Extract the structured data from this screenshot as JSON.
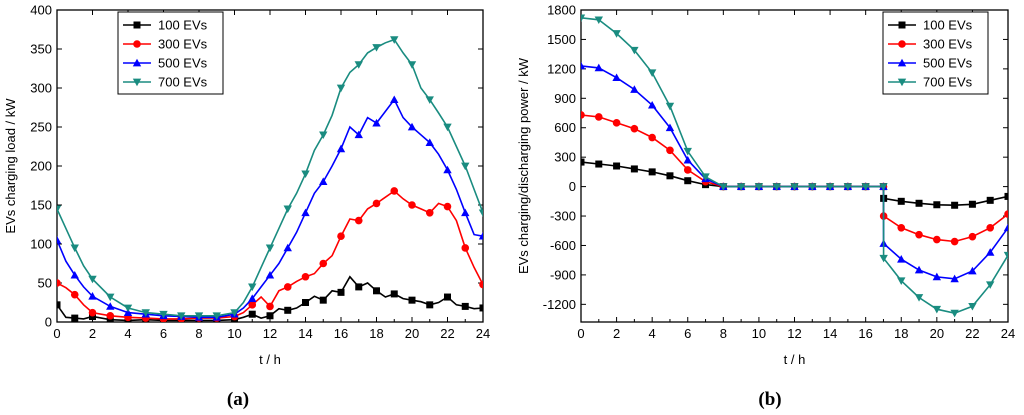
{
  "chart_data": [
    {
      "type": "line",
      "panel_label": "(a)",
      "xlabel": "t / h",
      "ylabel": "EVs charging load / kW",
      "xlim": [
        0,
        24
      ],
      "ylim": [
        0,
        400
      ],
      "xticks": [
        0,
        2,
        4,
        6,
        8,
        10,
        12,
        14,
        16,
        18,
        20,
        22,
        24
      ],
      "yticks": [
        0,
        50,
        100,
        150,
        200,
        250,
        300,
        350,
        400
      ],
      "legend": "top-left",
      "series": [
        {
          "name": "100 EVs",
          "color": "#000000",
          "marker": "square",
          "x": [
            0,
            0.5,
            1,
            1.5,
            2,
            3,
            4,
            5,
            6,
            7,
            8,
            9,
            10,
            10.5,
            11,
            11.5,
            12,
            12.5,
            13,
            13.5,
            14,
            14.5,
            15,
            15.5,
            16,
            16.5,
            17,
            17.5,
            18,
            18.5,
            19,
            19.5,
            20,
            20.5,
            21,
            21.5,
            22,
            22.5,
            23,
            23.5,
            24
          ],
          "y": [
            22,
            6,
            5,
            4,
            7,
            3,
            2,
            3,
            2,
            2,
            2,
            2,
            3,
            6,
            10,
            5,
            8,
            17,
            15,
            18,
            25,
            33,
            28,
            40,
            38,
            58,
            45,
            50,
            40,
            32,
            36,
            30,
            28,
            26,
            22,
            25,
            32,
            22,
            20,
            17,
            18
          ]
        },
        {
          "name": "300 EVs",
          "color": "#ff0000",
          "marker": "circle",
          "x": [
            0,
            0.5,
            1,
            1.5,
            2,
            3,
            4,
            5,
            6,
            7,
            8,
            9,
            10,
            10.5,
            11,
            11.5,
            12,
            12.5,
            13,
            13.5,
            14,
            14.5,
            15,
            15.5,
            16,
            16.5,
            17,
            17.5,
            18,
            18.5,
            19,
            19.5,
            20,
            20.5,
            21,
            21.5,
            22,
            22.5,
            23,
            23.5,
            24
          ],
          "y": [
            50,
            44,
            35,
            22,
            12,
            8,
            6,
            5,
            4,
            4,
            5,
            5,
            7,
            12,
            22,
            32,
            20,
            40,
            45,
            52,
            58,
            62,
            75,
            85,
            110,
            132,
            130,
            145,
            152,
            160,
            168,
            158,
            150,
            145,
            140,
            152,
            148,
            130,
            95,
            70,
            48
          ]
        },
        {
          "name": "500 EVs",
          "color": "#0000ff",
          "marker": "triangle",
          "x": [
            0,
            0.5,
            1,
            1.5,
            2,
            3,
            4,
            5,
            6,
            7,
            8,
            9,
            10,
            10.5,
            11,
            11.5,
            12,
            12.5,
            13,
            13.5,
            14,
            14.5,
            15,
            15.5,
            16,
            16.5,
            17,
            17.5,
            18,
            18.5,
            19,
            19.5,
            20,
            20.5,
            21,
            21.5,
            22,
            22.5,
            23,
            23.5,
            24
          ],
          "y": [
            105,
            78,
            60,
            45,
            33,
            20,
            12,
            10,
            8,
            7,
            6,
            6,
            10,
            18,
            30,
            45,
            60,
            75,
            95,
            115,
            140,
            165,
            180,
            200,
            222,
            250,
            240,
            262,
            255,
            270,
            285,
            262,
            250,
            240,
            230,
            215,
            195,
            170,
            140,
            112,
            110
          ]
        },
        {
          "name": "700 EVs",
          "color": "#1a8c80",
          "marker": "triangle-down",
          "x": [
            0,
            0.5,
            1,
            1.5,
            2,
            3,
            4,
            5,
            6,
            7,
            8,
            9,
            10,
            10.5,
            11,
            11.5,
            12,
            12.5,
            13,
            13.5,
            14,
            14.5,
            15,
            15.5,
            16,
            16.5,
            17,
            17.5,
            18,
            18.5,
            19,
            19.5,
            20,
            20.5,
            21,
            21.5,
            22,
            22.5,
            23,
            23.5,
            24
          ],
          "y": [
            145,
            120,
            95,
            72,
            55,
            32,
            18,
            12,
            10,
            8,
            8,
            8,
            12,
            25,
            45,
            70,
            95,
            120,
            145,
            165,
            190,
            220,
            240,
            265,
            300,
            320,
            330,
            345,
            352,
            358,
            362,
            345,
            330,
            300,
            285,
            268,
            250,
            225,
            200,
            170,
            140
          ]
        }
      ]
    },
    {
      "type": "line",
      "panel_label": "(b)",
      "xlabel": "t / h",
      "ylabel": "EVs charging/discharging power / kW",
      "xlim": [
        0,
        24
      ],
      "ylim": [
        -1380,
        1800
      ],
      "xticks": [
        0,
        2,
        4,
        6,
        8,
        10,
        12,
        14,
        16,
        18,
        20,
        22,
        24
      ],
      "yticks": [
        -1200,
        -900,
        -600,
        -300,
        0,
        300,
        600,
        900,
        1200,
        1500,
        1800
      ],
      "legend": "top-right",
      "series": [
        {
          "name": "100 EVs",
          "color": "#000000",
          "marker": "square",
          "x": [
            0,
            1,
            2,
            3,
            4,
            5,
            6,
            7,
            8,
            9,
            10,
            11,
            12,
            13,
            14,
            15,
            16,
            17,
            17.01,
            18,
            19,
            20,
            21,
            22,
            23,
            24
          ],
          "y": [
            250,
            230,
            210,
            180,
            150,
            110,
            60,
            20,
            0,
            0,
            0,
            0,
            0,
            0,
            0,
            0,
            0,
            0,
            -120,
            -150,
            -170,
            -185,
            -190,
            -180,
            -140,
            -100
          ]
        },
        {
          "name": "300 EVs",
          "color": "#ff0000",
          "marker": "circle",
          "x": [
            0,
            1,
            2,
            3,
            4,
            5,
            6,
            7,
            8,
            9,
            10,
            11,
            12,
            13,
            14,
            15,
            16,
            17,
            17.01,
            18,
            19,
            20,
            21,
            22,
            23,
            24
          ],
          "y": [
            730,
            710,
            650,
            590,
            500,
            370,
            170,
            50,
            0,
            0,
            0,
            0,
            0,
            0,
            0,
            0,
            0,
            0,
            -300,
            -420,
            -490,
            -540,
            -560,
            -510,
            -420,
            -280
          ]
        },
        {
          "name": "500 EVs",
          "color": "#0000ff",
          "marker": "triangle",
          "x": [
            0,
            1,
            2,
            3,
            4,
            5,
            6,
            7,
            8,
            9,
            10,
            11,
            12,
            13,
            14,
            15,
            16,
            17,
            17.01,
            18,
            19,
            20,
            21,
            22,
            23,
            24
          ],
          "y": [
            1230,
            1210,
            1110,
            990,
            830,
            600,
            270,
            80,
            0,
            0,
            0,
            0,
            0,
            0,
            0,
            0,
            0,
            0,
            -580,
            -740,
            -850,
            -920,
            -940,
            -860,
            -670,
            -420
          ]
        },
        {
          "name": "700 EVs",
          "color": "#1a8c80",
          "marker": "triangle-down",
          "x": [
            0,
            1,
            2,
            3,
            4,
            5,
            6,
            7,
            8,
            9,
            10,
            11,
            12,
            13,
            14,
            15,
            16,
            17,
            17.01,
            18,
            19,
            20,
            21,
            22,
            23,
            24
          ],
          "y": [
            1720,
            1700,
            1560,
            1390,
            1160,
            820,
            360,
            100,
            0,
            0,
            0,
            0,
            0,
            0,
            0,
            0,
            0,
            0,
            -730,
            -960,
            -1130,
            -1250,
            -1290,
            -1220,
            -1000,
            -700
          ]
        }
      ]
    }
  ]
}
